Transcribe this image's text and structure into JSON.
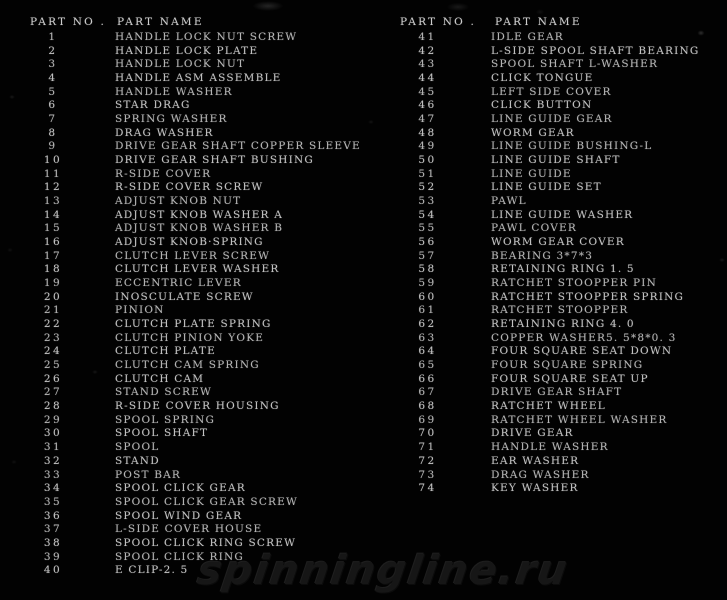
{
  "colors": {
    "background": "#020202",
    "text": "#c3c3c3",
    "header_text": "#cdcdcd",
    "watermark": "#161616"
  },
  "watermark": "spinningline.ru",
  "columns": [
    {
      "header": {
        "part_no": "PART NO .",
        "part_name": "PART NAME"
      },
      "rows": [
        {
          "no": "1",
          "name": "HANDLE LOCK NUT SCREW"
        },
        {
          "no": "2",
          "name": "HANDLE LOCK PLATE"
        },
        {
          "no": "3",
          "name": "HANDLE LOCK NUT"
        },
        {
          "no": "4",
          "name": "HANDLE ASM ASSEMBLE"
        },
        {
          "no": "5",
          "name": "HANDLE WASHER"
        },
        {
          "no": "6",
          "name": "STAR DRAG"
        },
        {
          "no": "7",
          "name": "SPRING WASHER"
        },
        {
          "no": "8",
          "name": "DRAG WASHER"
        },
        {
          "no": "9",
          "name": "DRIVE GEAR SHAFT COPPER SLEEVE"
        },
        {
          "no": "10",
          "name": "DRIVE GEAR SHAFT BUSHING"
        },
        {
          "no": "11",
          "name": "R-SIDE COVER"
        },
        {
          "no": "12",
          "name": "R-SIDE COVER SCREW"
        },
        {
          "no": "13",
          "name": "ADJUST KNOB NUT"
        },
        {
          "no": "14",
          "name": "ADJUST KNOB WASHER A"
        },
        {
          "no": "15",
          "name": "ADJUST KNOB WASHER B"
        },
        {
          "no": "16",
          "name": "ADJUST KNOB·SPRING"
        },
        {
          "no": "17",
          "name": "CLUTCH LEVER SCREW"
        },
        {
          "no": "18",
          "name": "CLUTCH LEVER WASHER"
        },
        {
          "no": "19",
          "name": "ECCENTRIC LEVER"
        },
        {
          "no": "20",
          "name": "INOSCULATE SCREW"
        },
        {
          "no": "21",
          "name": "PINION"
        },
        {
          "no": "22",
          "name": "CLUTCH PLATE SPRING"
        },
        {
          "no": "23",
          "name": "CLUTCH PINION YOKE"
        },
        {
          "no": "24",
          "name": "CLUTCH PLATE"
        },
        {
          "no": "25",
          "name": "CLUTCH CAM SPRING"
        },
        {
          "no": "26",
          "name": "CLUTCH CAM"
        },
        {
          "no": "27",
          "name": "STAND SCREW"
        },
        {
          "no": "28",
          "name": "R-SIDE COVER HOUSING"
        },
        {
          "no": "29",
          "name": "SPOOL SPRING"
        },
        {
          "no": "30",
          "name": "SPOOL SHAFT"
        },
        {
          "no": "31",
          "name": "SPOOL"
        },
        {
          "no": "32",
          "name": "STAND"
        },
        {
          "no": "33",
          "name": "POST BAR"
        },
        {
          "no": "34",
          "name": "SPOOL CLICK GEAR"
        },
        {
          "no": "35",
          "name": "SPOOL CLICK GEAR SCREW"
        },
        {
          "no": "36",
          "name": "SPOOL WIND GEAR"
        },
        {
          "no": "37",
          "name": "L-SIDE COVER HOUSE"
        },
        {
          "no": "38",
          "name": "SPOOL CLICK RING SCREW"
        },
        {
          "no": "39",
          "name": "SPOOL CLICK RING"
        },
        {
          "no": "40",
          "name": "E CLIP-2. 5"
        }
      ]
    },
    {
      "header": {
        "part_no": "PART NO .",
        "part_name": "PART NAME"
      },
      "rows": [
        {
          "no": "41",
          "name": "IDLE GEAR"
        },
        {
          "no": "42",
          "name": "L-SIDE SPOOL SHAFT BEARING"
        },
        {
          "no": "43",
          "name": "SPOOL SHAFT L-WASHER"
        },
        {
          "no": "44",
          "name": "CLICK TONGUE"
        },
        {
          "no": "45",
          "name": "LEFT SIDE COVER"
        },
        {
          "no": "46",
          "name": "CLICK BUTTON"
        },
        {
          "no": "47",
          "name": "LINE GUIDE GEAR"
        },
        {
          "no": "48",
          "name": "WORM GEAR"
        },
        {
          "no": "49",
          "name": "LINE GUIDE BUSHING-L"
        },
        {
          "no": "50",
          "name": "LINE GUIDE SHAFT"
        },
        {
          "no": "51",
          "name": "LINE GUIDE"
        },
        {
          "no": "52",
          "name": "LINE GUIDE SET"
        },
        {
          "no": "53",
          "name": "PAWL"
        },
        {
          "no": "54",
          "name": "LINE GUIDE WASHER"
        },
        {
          "no": "55",
          "name": "PAWL COVER"
        },
        {
          "no": "56",
          "name": "WORM GEAR COVER"
        },
        {
          "no": "57",
          "name": "BEARING 3*7*3"
        },
        {
          "no": "58",
          "name": "RETAINING RING 1. 5"
        },
        {
          "no": "59",
          "name": "RATCHET STOOPPER PIN"
        },
        {
          "no": "60",
          "name": "RATCHET STOOPPER SPRING"
        },
        {
          "no": "61",
          "name": "RATCHET STOOPPER"
        },
        {
          "no": "62",
          "name": "RETAINING RING 4. 0"
        },
        {
          "no": "63",
          "name": "COPPER WASHER5. 5*8*0. 3"
        },
        {
          "no": "64",
          "name": "FOUR SQUARE SEAT DOWN"
        },
        {
          "no": "65",
          "name": "FOUR SQUARE SPRING"
        },
        {
          "no": "66",
          "name": "FOUR SQUARE SEAT UP"
        },
        {
          "no": "67",
          "name": "DRIVE GEAR SHAFT"
        },
        {
          "no": "68",
          "name": "RATCHET WHEEL"
        },
        {
          "no": "69",
          "name": "RATCHET WHEEL WASHER"
        },
        {
          "no": "70",
          "name": "DRIVE GEAR"
        },
        {
          "no": "71",
          "name": "HANDLE WASHER"
        },
        {
          "no": "72",
          "name": "EAR WASHER"
        },
        {
          "no": "73",
          "name": "DRAG WASHER"
        },
        {
          "no": "74",
          "name": "KEY WASHER"
        }
      ]
    }
  ]
}
